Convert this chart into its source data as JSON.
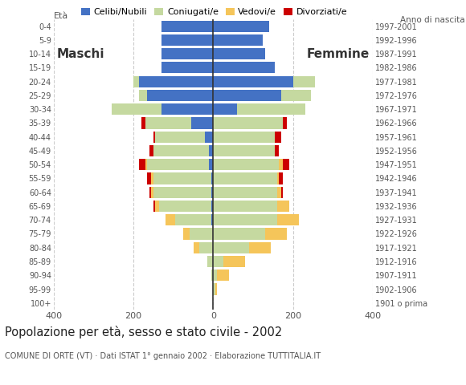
{
  "age_groups": [
    "100+",
    "95-99",
    "90-94",
    "85-89",
    "80-84",
    "75-79",
    "70-74",
    "65-69",
    "60-64",
    "55-59",
    "50-54",
    "45-49",
    "40-44",
    "35-39",
    "30-34",
    "25-29",
    "20-24",
    "15-19",
    "10-14",
    "5-9",
    "0-4"
  ],
  "birth_years": [
    "1901 o prima",
    "1902-1906",
    "1907-1911",
    "1912-1916",
    "1917-1921",
    "1922-1926",
    "1927-1931",
    "1932-1936",
    "1937-1941",
    "1942-1946",
    "1947-1951",
    "1952-1956",
    "1957-1961",
    "1962-1966",
    "1967-1971",
    "1972-1976",
    "1977-1981",
    "1982-1986",
    "1987-1991",
    "1992-1996",
    "1997-2001"
  ],
  "males": {
    "celibi": [
      0,
      0,
      0,
      0,
      0,
      0,
      5,
      5,
      5,
      5,
      10,
      10,
      20,
      55,
      130,
      165,
      185,
      130,
      130,
      130,
      130
    ],
    "coniugati": [
      0,
      0,
      5,
      15,
      35,
      60,
      90,
      130,
      145,
      145,
      155,
      140,
      125,
      115,
      125,
      20,
      15,
      0,
      0,
      0,
      0
    ],
    "vedovi": [
      0,
      0,
      0,
      0,
      15,
      15,
      25,
      10,
      5,
      5,
      5,
      0,
      0,
      0,
      0,
      0,
      0,
      0,
      0,
      0,
      0
    ],
    "divorziati": [
      0,
      0,
      0,
      0,
      0,
      0,
      0,
      5,
      5,
      10,
      15,
      10,
      5,
      10,
      0,
      0,
      0,
      0,
      0,
      0,
      0
    ]
  },
  "females": {
    "nubili": [
      0,
      0,
      0,
      0,
      0,
      0,
      0,
      0,
      0,
      0,
      0,
      0,
      0,
      0,
      60,
      170,
      200,
      155,
      130,
      125,
      140
    ],
    "coniugate": [
      0,
      5,
      10,
      25,
      90,
      130,
      160,
      160,
      160,
      160,
      165,
      155,
      155,
      175,
      170,
      75,
      55,
      0,
      0,
      0,
      0
    ],
    "vedove": [
      0,
      5,
      30,
      55,
      55,
      55,
      55,
      30,
      10,
      5,
      10,
      0,
      0,
      0,
      0,
      0,
      0,
      0,
      0,
      0,
      0
    ],
    "divorziate": [
      0,
      0,
      0,
      0,
      0,
      0,
      0,
      0,
      5,
      10,
      15,
      10,
      15,
      10,
      0,
      0,
      0,
      0,
      0,
      0,
      0
    ]
  },
  "colors": {
    "celibi": "#4472c4",
    "coniugati": "#c5d9a0",
    "vedovi": "#f5c55a",
    "divorziati": "#cc0000"
  },
  "legend_labels": [
    "Celibi/Nubili",
    "Coniugati/e",
    "Vedovi/e",
    "Divorziati/e"
  ],
  "title": "Popolazione per età, sesso e stato civile - 2002",
  "subtitle": "COMUNE DI ORTE (VT) · Dati ISTAT 1° gennaio 2002 · Elaborazione TUTTITALIA.IT",
  "xlim": 400,
  "background_color": "#ffffff",
  "grid_color": "#cccccc",
  "bar_height": 0.82,
  "eta_label": "Età",
  "anno_label": "Anno di nascita",
  "maschi_label": "Maschi",
  "femmine_label": "Femmine"
}
